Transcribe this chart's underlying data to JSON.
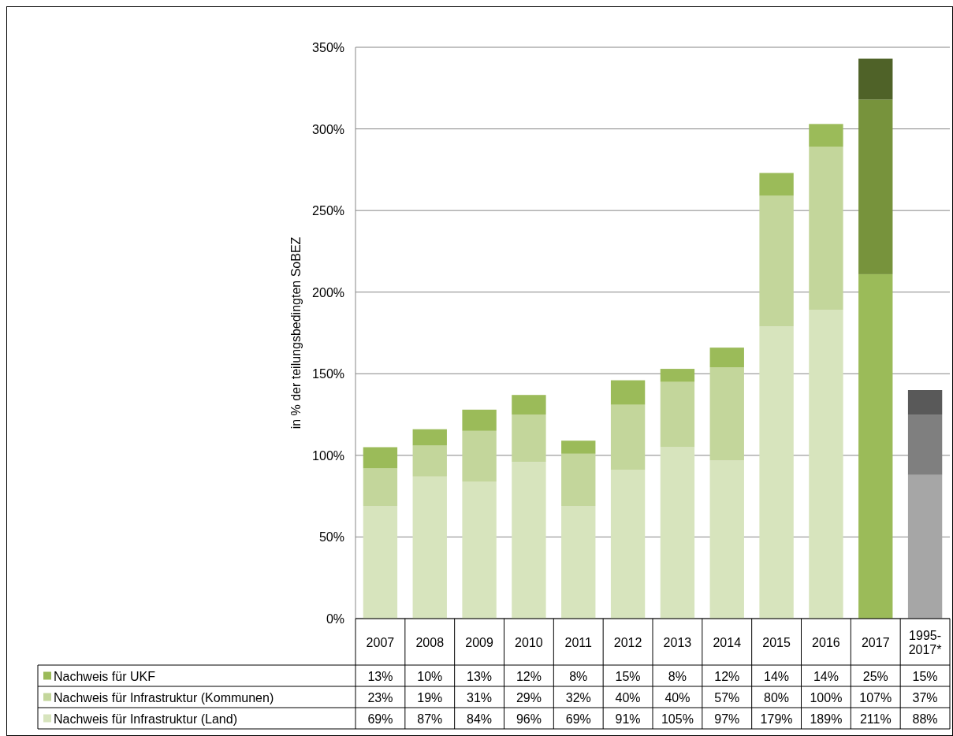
{
  "chart_data": {
    "type": "bar",
    "stacked": true,
    "ylabel": "in % der teilungsbedingten SoBEZ",
    "categories": [
      "2007",
      "2008",
      "2009",
      "2010",
      "2011",
      "2012",
      "2013",
      "2014",
      "2015",
      "2016",
      "2017",
      "1995-2017*"
    ],
    "ylim": [
      0,
      350
    ],
    "yticks": [
      {
        "value": 0,
        "label": "0%"
      },
      {
        "value": 50,
        "label": "50%"
      },
      {
        "value": 100,
        "label": "100%"
      },
      {
        "value": 150,
        "label": "150%"
      },
      {
        "value": 200,
        "label": "200%"
      },
      {
        "value": 250,
        "label": "250%"
      },
      {
        "value": 300,
        "label": "300%"
      },
      {
        "value": 350,
        "label": "350%"
      }
    ],
    "grid": "y",
    "legend": "bottom left",
    "series": [
      {
        "name": "Nachweis für Infrastruktur (Land)",
        "color": "#d7e4bd",
        "colors": [
          "#d7e4bd",
          "#d7e4bd",
          "#d7e4bd",
          "#d7e4bd",
          "#d7e4bd",
          "#d7e4bd",
          "#d7e4bd",
          "#d7e4bd",
          "#d7e4bd",
          "#d7e4bd",
          "#9bbb59",
          "#a6a6a6"
        ],
        "values": [
          69,
          87,
          84,
          96,
          69,
          91,
          105,
          97,
          179,
          189,
          211,
          88
        ],
        "value_labels": [
          "69%",
          "87%",
          "84%",
          "96%",
          "69%",
          "91%",
          "105%",
          "97%",
          "179%",
          "189%",
          "211%",
          "88%"
        ]
      },
      {
        "name": "Nachweis für Infrastruktur (Kommunen)",
        "color": "#c3d69b",
        "colors": [
          "#c3d69b",
          "#c3d69b",
          "#c3d69b",
          "#c3d69b",
          "#c3d69b",
          "#c3d69b",
          "#c3d69b",
          "#c3d69b",
          "#c3d69b",
          "#c3d69b",
          "#77933c",
          "#7f7f7f"
        ],
        "values": [
          23,
          19,
          31,
          29,
          32,
          40,
          40,
          57,
          80,
          100,
          107,
          37
        ],
        "value_labels": [
          "23%",
          "19%",
          "31%",
          "29%",
          "32%",
          "40%",
          "40%",
          "57%",
          "80%",
          "100%",
          "107%",
          "37%"
        ]
      },
      {
        "name": "Nachweis für UKF",
        "color": "#9bbb59",
        "colors": [
          "#9bbb59",
          "#9bbb59",
          "#9bbb59",
          "#9bbb59",
          "#9bbb59",
          "#9bbb59",
          "#9bbb59",
          "#9bbb59",
          "#9bbb59",
          "#9bbb59",
          "#4f6228",
          "#595959"
        ],
        "values": [
          13,
          10,
          13,
          12,
          8,
          15,
          8,
          12,
          14,
          14,
          25,
          15
        ],
        "value_labels": [
          "13%",
          "10%",
          "13%",
          "12%",
          "8%",
          "15%",
          "8%",
          "12%",
          "14%",
          "14%",
          "25%",
          "15%"
        ]
      }
    ]
  }
}
